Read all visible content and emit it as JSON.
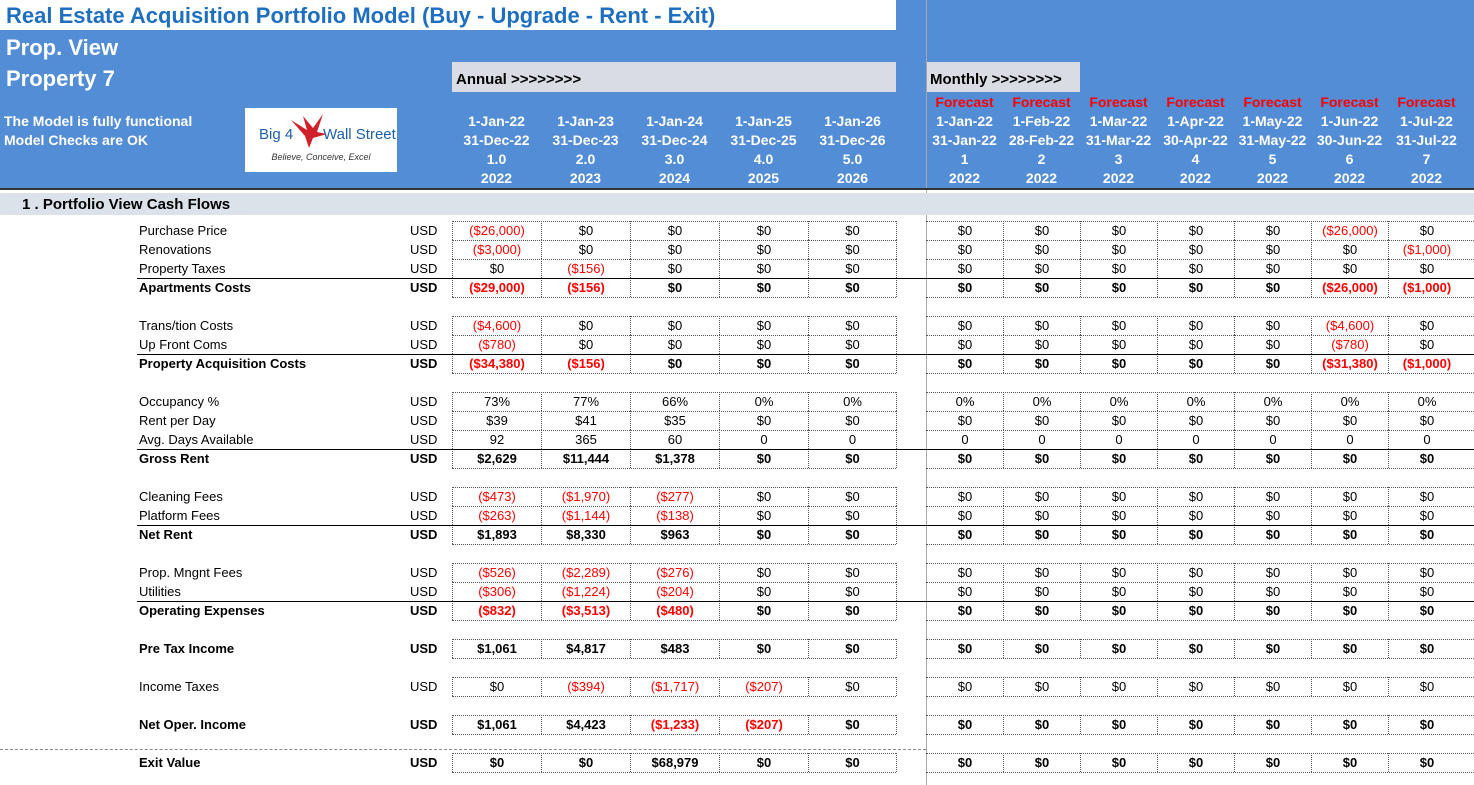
{
  "title": "Real Estate Acquisition Portfolio Model (Buy - Upgrade - Rent - Exit)",
  "view": "Prop. View",
  "property": "Property 7",
  "status1": "The Model is fully functional",
  "status2": "Model Checks are OK",
  "logo": {
    "left": "Big 4",
    "right": "Wall Street",
    "tagline": "Believe, Conceive, Excel"
  },
  "annual_label": "Annual >>>>>>>>",
  "monthly_label": "Monthly >>>>>>>>",
  "annual_cols": [
    {
      "start": "1-Jan-22",
      "end": "31-Dec-22",
      "num": "1.0",
      "year": "2022"
    },
    {
      "start": "1-Jan-23",
      "end": "31-Dec-23",
      "num": "2.0",
      "year": "2023"
    },
    {
      "start": "1-Jan-24",
      "end": "31-Dec-24",
      "num": "3.0",
      "year": "2024"
    },
    {
      "start": "1-Jan-25",
      "end": "31-Dec-25",
      "num": "4.0",
      "year": "2025"
    },
    {
      "start": "1-Jan-26",
      "end": "31-Dec-26",
      "num": "5.0",
      "year": "2026"
    }
  ],
  "monthly_cols": [
    {
      "fc": "Forecast",
      "start": "1-Jan-22",
      "end": "31-Jan-22",
      "num": "1",
      "year": "2022"
    },
    {
      "fc": "Forecast",
      "start": "1-Feb-22",
      "end": "28-Feb-22",
      "num": "2",
      "year": "2022"
    },
    {
      "fc": "Forecast",
      "start": "1-Mar-22",
      "end": "31-Mar-22",
      "num": "3",
      "year": "2022"
    },
    {
      "fc": "Forecast",
      "start": "1-Apr-22",
      "end": "30-Apr-22",
      "num": "4",
      "year": "2022"
    },
    {
      "fc": "Forecast",
      "start": "1-May-22",
      "end": "31-May-22",
      "num": "5",
      "year": "2022"
    },
    {
      "fc": "Forecast",
      "start": "1-Jun-22",
      "end": "30-Jun-22",
      "num": "6",
      "year": "2022"
    },
    {
      "fc": "Forecast",
      "start": "1-Jul-22",
      "end": "31-Jul-22",
      "num": "7",
      "year": "2022"
    }
  ],
  "section_title": "1 . Portfolio View Cash Flows",
  "rows": [
    {
      "label": "Purchase Price",
      "unit": "USD",
      "bold": false,
      "annual": [
        "($26,000)",
        "$0",
        "$0",
        "$0",
        "$0"
      ],
      "monthly": [
        "$0",
        "$0",
        "$0",
        "$0",
        "$0",
        "($26,000)",
        "$0"
      ]
    },
    {
      "label": "Renovations",
      "unit": "USD",
      "bold": false,
      "annual": [
        "($3,000)",
        "$0",
        "$0",
        "$0",
        "$0"
      ],
      "monthly": [
        "$0",
        "$0",
        "$0",
        "$0",
        "$0",
        "$0",
        "($1,000)"
      ]
    },
    {
      "label": "Property Taxes",
      "unit": "USD",
      "bold": false,
      "annual": [
        "$0",
        "($156)",
        "$0",
        "$0",
        "$0"
      ],
      "monthly": [
        "$0",
        "$0",
        "$0",
        "$0",
        "$0",
        "$0",
        "$0"
      ]
    },
    {
      "label": "Apartments Costs",
      "unit": "USD",
      "bold": true,
      "annual": [
        "($29,000)",
        "($156)",
        "$0",
        "$0",
        "$0"
      ],
      "monthly": [
        "$0",
        "$0",
        "$0",
        "$0",
        "$0",
        "($26,000)",
        "($1,000)"
      ]
    },
    {
      "label": "Trans/tion Costs",
      "unit": "USD",
      "bold": false,
      "annual": [
        "($4,600)",
        "$0",
        "$0",
        "$0",
        "$0"
      ],
      "monthly": [
        "$0",
        "$0",
        "$0",
        "$0",
        "$0",
        "($4,600)",
        "$0"
      ]
    },
    {
      "label": "Up Front Coms",
      "unit": "USD",
      "bold": false,
      "annual": [
        "($780)",
        "$0",
        "$0",
        "$0",
        "$0"
      ],
      "monthly": [
        "$0",
        "$0",
        "$0",
        "$0",
        "$0",
        "($780)",
        "$0"
      ]
    },
    {
      "label": "Property Acquisition Costs",
      "unit": "USD",
      "bold": true,
      "annual": [
        "($34,380)",
        "($156)",
        "$0",
        "$0",
        "$0"
      ],
      "monthly": [
        "$0",
        "$0",
        "$0",
        "$0",
        "$0",
        "($31,380)",
        "($1,000)"
      ]
    },
    {
      "label": "Occupancy %",
      "unit": "USD",
      "bold": false,
      "annual": [
        "73%",
        "77%",
        "66%",
        "0%",
        "0%"
      ],
      "monthly": [
        "0%",
        "0%",
        "0%",
        "0%",
        "0%",
        "0%",
        "0%"
      ]
    },
    {
      "label": "Rent per Day",
      "unit": "USD",
      "bold": false,
      "annual": [
        "$39",
        "$41",
        "$35",
        "$0",
        "$0"
      ],
      "monthly": [
        "$0",
        "$0",
        "$0",
        "$0",
        "$0",
        "$0",
        "$0"
      ]
    },
    {
      "label": "Avg. Days Available",
      "unit": "USD",
      "bold": false,
      "annual": [
        "92",
        "365",
        "60",
        "0",
        "0"
      ],
      "monthly": [
        "0",
        "0",
        "0",
        "0",
        "0",
        "0",
        "0"
      ]
    },
    {
      "label": "Gross Rent",
      "unit": "USD",
      "bold": true,
      "annual": [
        "$2,629",
        "$11,444",
        "$1,378",
        "$0",
        "$0"
      ],
      "monthly": [
        "$0",
        "$0",
        "$0",
        "$0",
        "$0",
        "$0",
        "$0"
      ]
    },
    {
      "label": "Cleaning Fees",
      "unit": "USD",
      "bold": false,
      "annual": [
        "($473)",
        "($1,970)",
        "($277)",
        "$0",
        "$0"
      ],
      "monthly": [
        "$0",
        "$0",
        "$0",
        "$0",
        "$0",
        "$0",
        "$0"
      ]
    },
    {
      "label": "Platform Fees",
      "unit": "USD",
      "bold": false,
      "annual": [
        "($263)",
        "($1,144)",
        "($138)",
        "$0",
        "$0"
      ],
      "monthly": [
        "$0",
        "$0",
        "$0",
        "$0",
        "$0",
        "$0",
        "$0"
      ]
    },
    {
      "label": "Net Rent",
      "unit": "USD",
      "bold": true,
      "annual": [
        "$1,893",
        "$8,330",
        "$963",
        "$0",
        "$0"
      ],
      "monthly": [
        "$0",
        "$0",
        "$0",
        "$0",
        "$0",
        "$0",
        "$0"
      ]
    },
    {
      "label": "Prop. Mngnt Fees",
      "unit": "USD",
      "bold": false,
      "annual": [
        "($526)",
        "($2,289)",
        "($276)",
        "$0",
        "$0"
      ],
      "monthly": [
        "$0",
        "$0",
        "$0",
        "$0",
        "$0",
        "$0",
        "$0"
      ]
    },
    {
      "label": "Utilities",
      "unit": "USD",
      "bold": false,
      "annual": [
        "($306)",
        "($1,224)",
        "($204)",
        "$0",
        "$0"
      ],
      "monthly": [
        "$0",
        "$0",
        "$0",
        "$0",
        "$0",
        "$0",
        "$0"
      ]
    },
    {
      "label": "Operating Expenses",
      "unit": "USD",
      "bold": true,
      "annual": [
        "($832)",
        "($3,513)",
        "($480)",
        "$0",
        "$0"
      ],
      "monthly": [
        "$0",
        "$0",
        "$0",
        "$0",
        "$0",
        "$0",
        "$0"
      ]
    },
    {
      "label": "Pre Tax Income",
      "unit": "USD",
      "bold": true,
      "annual": [
        "$1,061",
        "$4,817",
        "$483",
        "$0",
        "$0"
      ],
      "monthly": [
        "$0",
        "$0",
        "$0",
        "$0",
        "$0",
        "$0",
        "$0"
      ]
    },
    {
      "label": "Income Taxes",
      "unit": "USD",
      "bold": false,
      "annual": [
        "$0",
        "($394)",
        "($1,717)",
        "($207)",
        "$0"
      ],
      "monthly": [
        "$0",
        "$0",
        "$0",
        "$0",
        "$0",
        "$0",
        "$0"
      ]
    },
    {
      "label": "Net Oper. Income",
      "unit": "USD",
      "bold": true,
      "annual": [
        "$1,061",
        "$4,423",
        "($1,233)",
        "($207)",
        "$0"
      ],
      "monthly": [
        "$0",
        "$0",
        "$0",
        "$0",
        "$0",
        "$0",
        "$0"
      ]
    },
    {
      "label": "Exit Value",
      "unit": "USD",
      "bold": true,
      "annual": [
        "$0",
        "$0",
        "$68,979",
        "$0",
        "$0"
      ],
      "monthly": [
        "$0",
        "$0",
        "$0",
        "$0",
        "$0",
        "$0",
        "$0"
      ]
    }
  ]
}
